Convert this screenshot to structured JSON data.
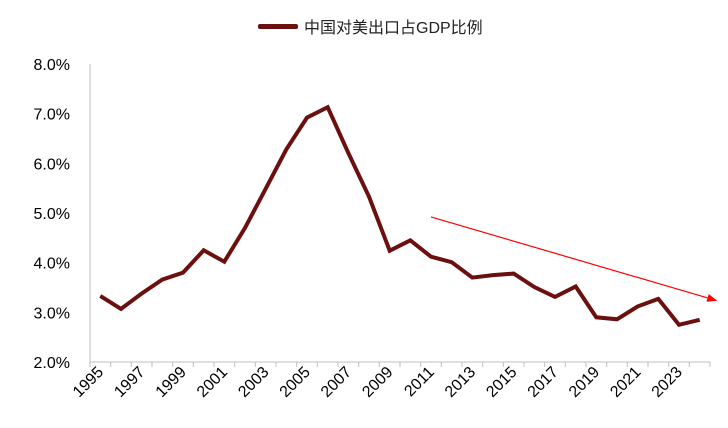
{
  "chart_data": {
    "type": "line",
    "title": "",
    "xlabel": "",
    "ylabel": "",
    "x": [
      1995,
      1996,
      1997,
      1998,
      1999,
      2000,
      2001,
      2002,
      2003,
      2004,
      2005,
      2006,
      2007,
      2008,
      2009,
      2010,
      2011,
      2012,
      2013,
      2014,
      2015,
      2016,
      2017,
      2018,
      2019,
      2020,
      2021,
      2022,
      2023,
      2024
    ],
    "x_tick_labels": [
      "1995",
      "1997",
      "1999",
      "2001",
      "2003",
      "2005",
      "2007",
      "2009",
      "2011",
      "2013",
      "2015",
      "2017",
      "2019",
      "2021",
      "2023"
    ],
    "series": [
      {
        "name": "中国对美出口占GDP比例",
        "color": "#6b0f0f",
        "values": [
          3.33,
          3.07,
          3.38,
          3.66,
          3.8,
          4.25,
          4.02,
          4.7,
          5.49,
          6.28,
          6.92,
          7.13,
          6.21,
          5.33,
          4.24,
          4.45,
          4.12,
          4.01,
          3.7,
          3.75,
          3.78,
          3.51,
          3.31,
          3.52,
          2.9,
          2.86,
          3.12,
          3.27,
          2.75,
          2.85
        ]
      }
    ],
    "y_tick_labels": [
      "2.0%",
      "3.0%",
      "4.0%",
      "5.0%",
      "6.0%",
      "7.0%",
      "8.0%"
    ],
    "ylim": [
      2.0,
      8.0
    ],
    "y_unit": "%",
    "grid": false,
    "legend_position": "top-center",
    "annotations": [
      {
        "type": "trend-arrow",
        "color": "#ff0000",
        "from": {
          "x": 2011,
          "y": 4.92
        },
        "to": {
          "x": 2024.8,
          "y": 3.24
        }
      }
    ]
  }
}
